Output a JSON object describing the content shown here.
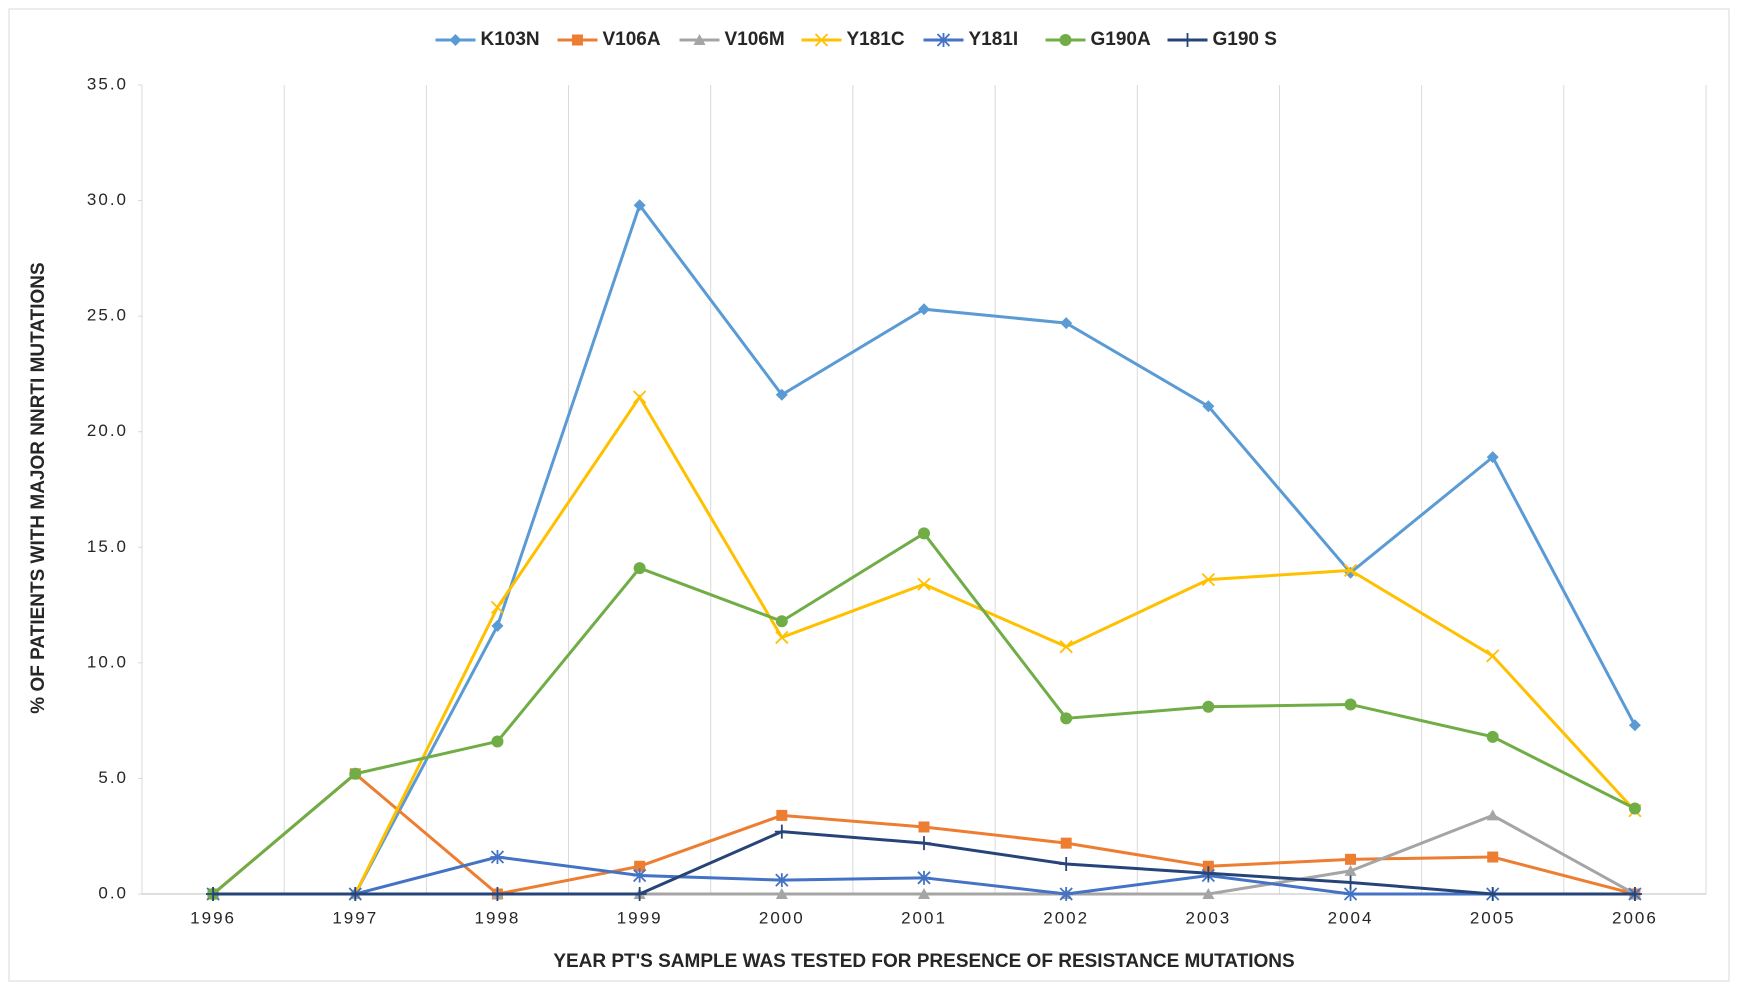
{
  "chart_data": {
    "type": "line",
    "x_label": "YEAR PT'S SAMPLE WAS TESTED FOR PRESENCE  OF RESISTANCE  MUTATIONS",
    "y_label": "% OF PATIENTS WITH MAJOR NNRTI MUTATIONS",
    "categories": [
      "1996",
      "1997",
      "1998",
      "1999",
      "2000",
      "2001",
      "2002",
      "2003",
      "2004",
      "2005",
      "2006"
    ],
    "ylim": [
      0,
      35
    ],
    "yticks": [
      {
        "value": 0,
        "label": "0.0"
      },
      {
        "value": 5,
        "label": "5.0"
      },
      {
        "value": 10,
        "label": "10.0"
      },
      {
        "value": 15,
        "label": "15.0"
      },
      {
        "value": 20,
        "label": "20.0"
      },
      {
        "value": 25,
        "label": "25.0"
      },
      {
        "value": 30,
        "label": "30.0"
      },
      {
        "value": 35,
        "label": "35.0"
      }
    ],
    "grid": "x",
    "legend": "top",
    "series": [
      {
        "name": "K103N",
        "color": "#5b9bd5",
        "marker": "diamond",
        "values": [
          0,
          0,
          11.6,
          29.8,
          21.6,
          25.3,
          24.7,
          21.1,
          13.9,
          18.9,
          7.3
        ]
      },
      {
        "name": "V106A",
        "color": "#ed7d31",
        "marker": "square",
        "values": [
          0,
          5.2,
          0,
          1.2,
          3.4,
          2.9,
          2.2,
          1.2,
          1.5,
          1.6,
          0
        ]
      },
      {
        "name": "V106M",
        "color": "#a5a5a5",
        "marker": "triangle",
        "values": [
          0,
          0,
          0,
          0,
          0,
          0,
          0,
          0,
          1.0,
          3.4,
          0
        ]
      },
      {
        "name": "Y181C",
        "color": "#ffc000",
        "marker": "x",
        "values": [
          0,
          0,
          12.4,
          21.5,
          11.1,
          13.4,
          10.7,
          13.6,
          14.0,
          10.3,
          3.6
        ]
      },
      {
        "name": "Y181I",
        "color": "#4472c4",
        "marker": "star",
        "values": [
          0,
          0,
          1.6,
          0.8,
          0.6,
          0.7,
          0,
          0.8,
          0,
          0,
          0
        ]
      },
      {
        "name": "G190A",
        "color": "#70ad47",
        "marker": "circle",
        "values": [
          0,
          5.2,
          6.6,
          14.1,
          11.8,
          15.6,
          7.6,
          8.1,
          8.2,
          6.8,
          3.7
        ]
      },
      {
        "name": "G190 S",
        "color": "#264478",
        "marker": "plus",
        "values": [
          0,
          0,
          0,
          0,
          2.7,
          2.2,
          1.3,
          0.9,
          0.5,
          0,
          0
        ]
      }
    ]
  }
}
